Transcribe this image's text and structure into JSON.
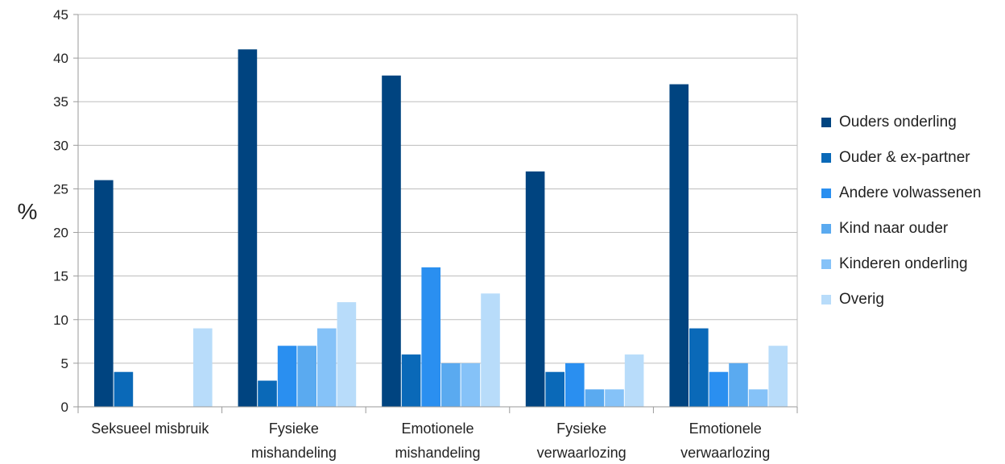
{
  "chart_data": {
    "type": "bar",
    "ylabel": "%",
    "ylim": [
      0,
      45
    ],
    "yticks": [
      0,
      5,
      10,
      15,
      20,
      25,
      30,
      35,
      40,
      45
    ],
    "grid": true,
    "legend_position": "right",
    "categories": [
      [
        "Seksueel misbruik"
      ],
      [
        "Fysieke",
        "mishandeling"
      ],
      [
        "Emotionele",
        "mishandeling"
      ],
      [
        "Fysieke",
        "verwaarlozing"
      ],
      [
        "Emotionele",
        "verwaarlozing"
      ]
    ],
    "series": [
      {
        "name": "Ouders onderling",
        "color": "#004480",
        "values": [
          26,
          41,
          38,
          27,
          37
        ]
      },
      {
        "name": "Ouder & ex-partner",
        "color": "#0a69b8",
        "values": [
          4,
          3,
          6,
          4,
          9
        ]
      },
      {
        "name": "Andere volwassenen",
        "color": "#2a8ff0",
        "values": [
          0,
          7,
          16,
          5,
          4
        ]
      },
      {
        "name": "Kind naar ouder",
        "color": "#5aaaf0",
        "values": [
          0,
          7,
          5,
          2,
          5
        ]
      },
      {
        "name": "Kinderen onderling",
        "color": "#85c2f8",
        "values": [
          0,
          9,
          5,
          2,
          2
        ]
      },
      {
        "name": "Overig",
        "color": "#b8dcfa",
        "values": [
          9,
          12,
          13,
          6,
          7
        ]
      }
    ]
  }
}
